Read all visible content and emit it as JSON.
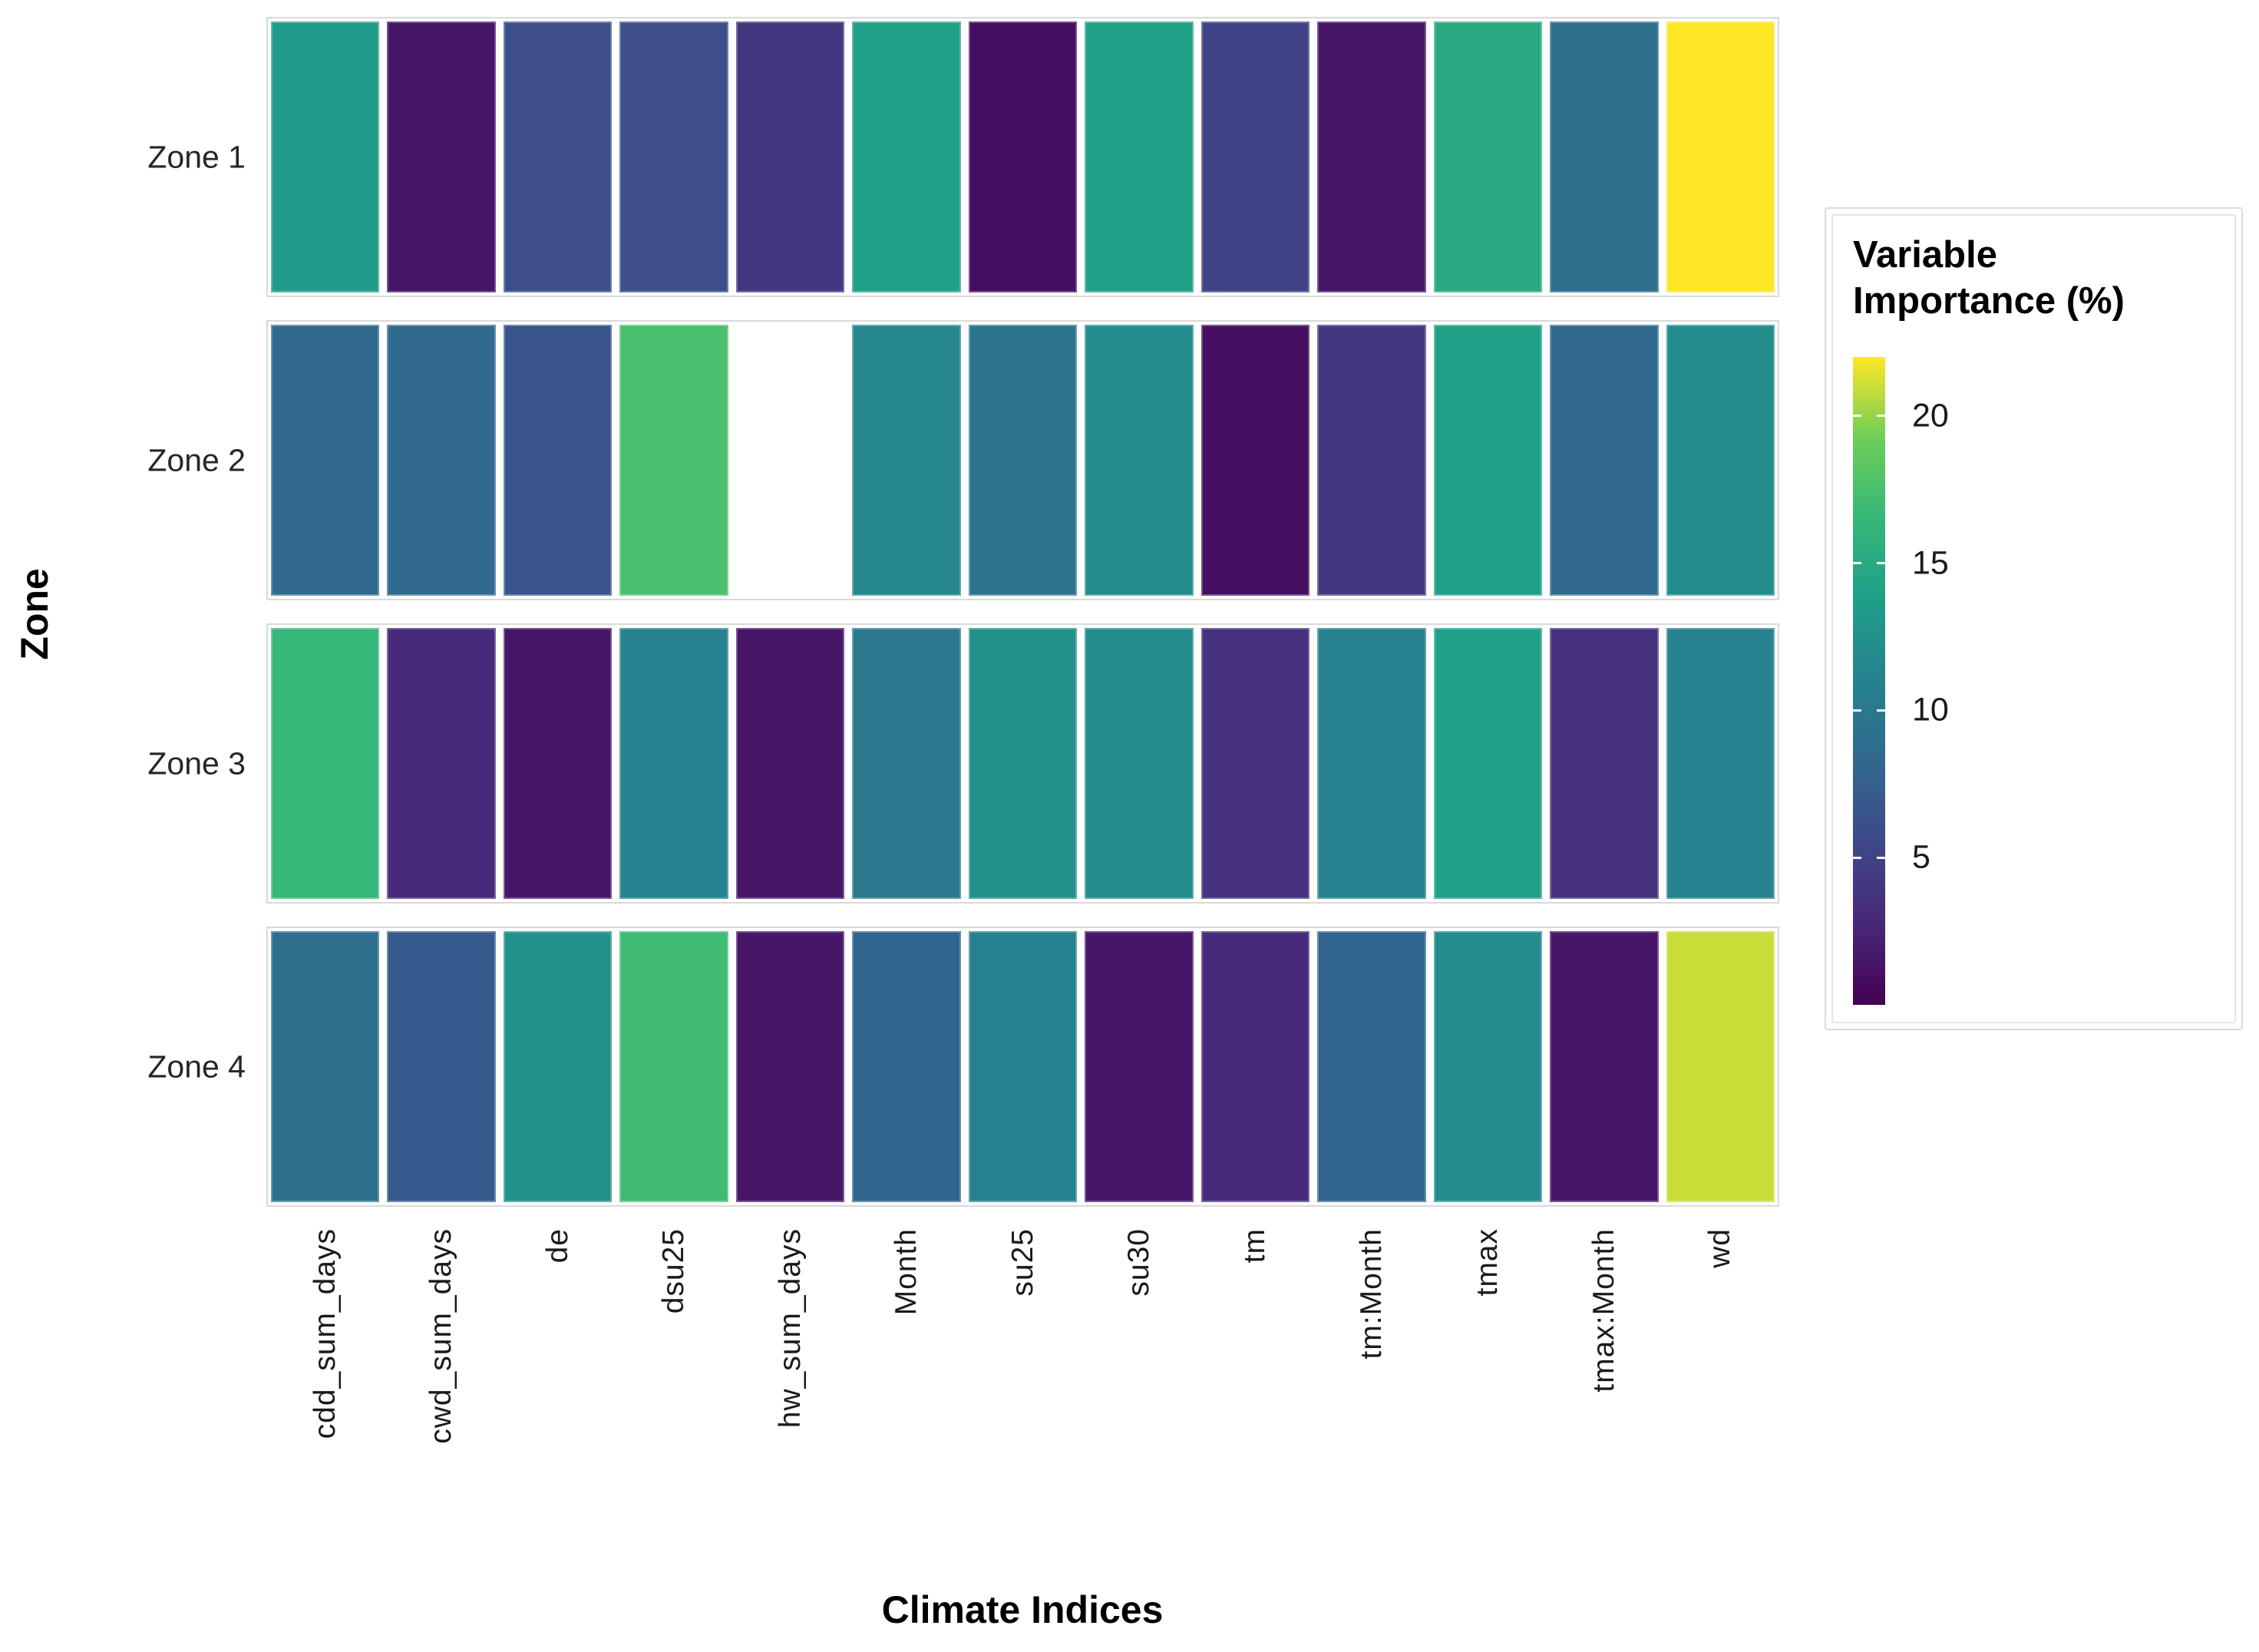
{
  "figure": {
    "background": "#ffffff",
    "x_axis_title": "Climate Indices",
    "y_axis_title": "Zone"
  },
  "legend": {
    "title_lines": [
      "Variable",
      "Importance (%)"
    ],
    "ticks": [
      20,
      15,
      10,
      5
    ],
    "domain_min": 0,
    "domain_max": 22,
    "colormap_name": "viridis",
    "colormap_stops": [
      "#440154",
      "#482878",
      "#3e4989",
      "#31688e",
      "#26828e",
      "#1f9e89",
      "#35b779",
      "#6ece58",
      "#fde725"
    ],
    "missing_color": "#ffffff"
  },
  "chart_data": {
    "type": "heatmap",
    "title": "",
    "xlabel": "Climate Indices",
    "ylabel": "Zone",
    "value_label": "Variable Importance (%)",
    "x_categories": [
      "cdd_sum_days",
      "cwd_sum_days",
      "de",
      "dsu25",
      "hw_sum_days",
      "Month",
      "su25",
      "su30",
      "tm",
      "tm:Month",
      "tmax",
      "tmax:Month",
      "wd"
    ],
    "y_categories": [
      "Zone 1",
      "Zone 2",
      "Zone 3",
      "Zone 4"
    ],
    "color_domain": [
      0,
      22
    ],
    "legend_position": "right",
    "grid": false,
    "series": [
      {
        "name": "Zone 1",
        "values": [
          13.5,
          1.5,
          6,
          6,
          4,
          14,
          1,
          14,
          5,
          1.5,
          15,
          9,
          22
        ]
      },
      {
        "name": "Zone 2",
        "values": [
          8.5,
          8.5,
          6.5,
          17.5,
          null,
          11.5,
          9.5,
          12,
          1,
          4,
          14,
          8.5,
          12
        ]
      },
      {
        "name": "Zone 3",
        "values": [
          16.5,
          3,
          1.5,
          11,
          1.5,
          10,
          12.5,
          12,
          3.5,
          11,
          14,
          3.5,
          11
        ]
      },
      {
        "name": "Zone 4",
        "values": [
          9,
          7,
          12.5,
          17,
          1.5,
          8,
          11,
          1.5,
          3,
          8,
          12,
          1.5,
          21
        ]
      }
    ]
  }
}
